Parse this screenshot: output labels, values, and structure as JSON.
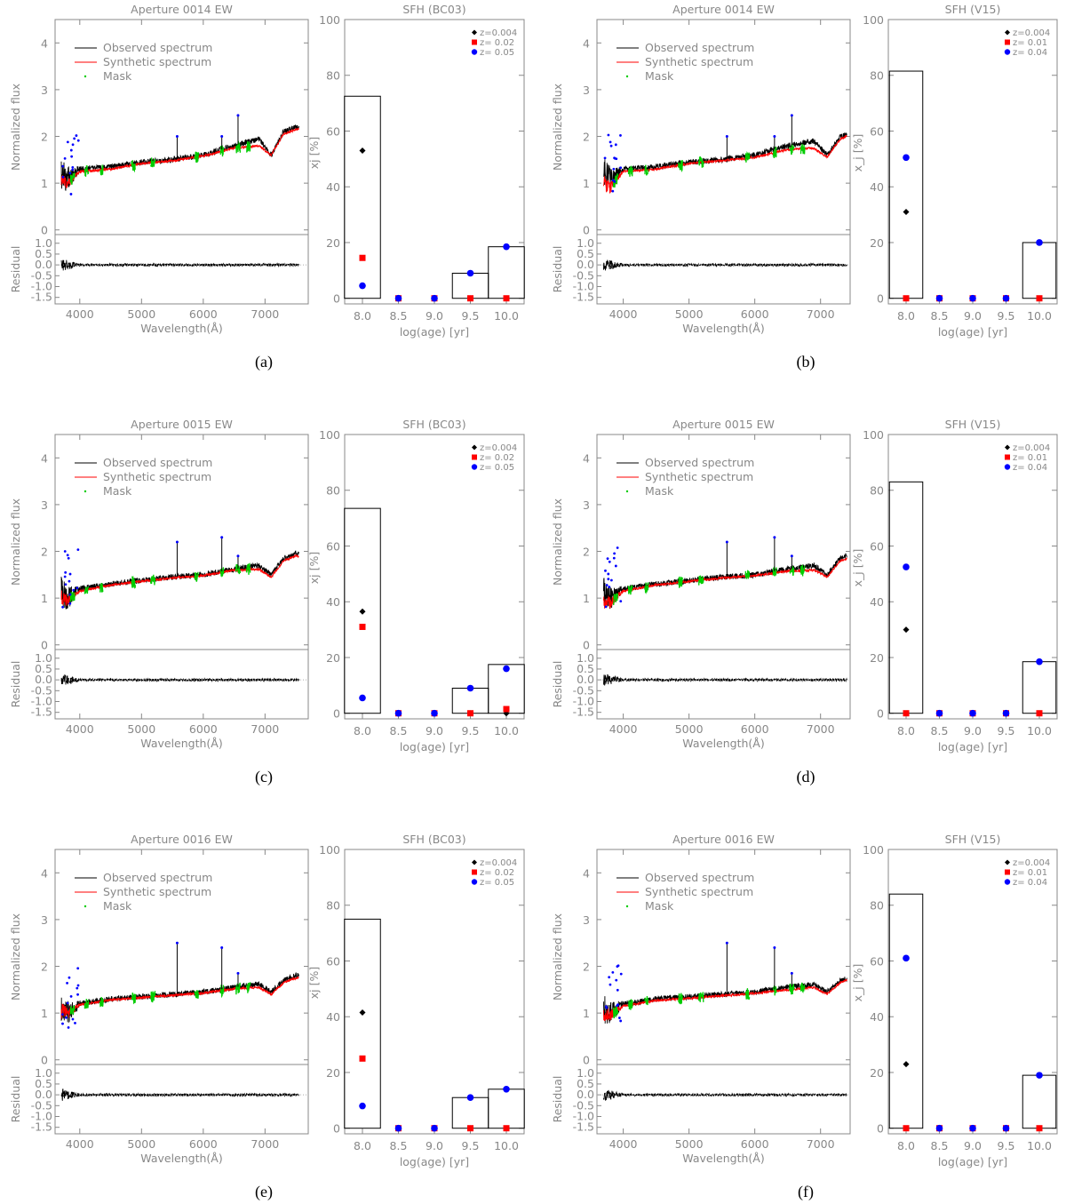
{
  "colors": {
    "axis": "#888888",
    "observed": "#000000",
    "synthetic": "#ff0000",
    "mask": "#00cc00",
    "flagged": "#0000ff",
    "z_low": "#000000",
    "z_mid": "#ff0000",
    "z_high": "#0000ff"
  },
  "labels": {
    "spec_ylabel": "Normalized flux",
    "resid_ylabel": "Residual",
    "spec_xlabel": "Wavelength(Å)",
    "sfh_xlabel": "log(age) [yr]",
    "legend_observed": "Observed spectrum",
    "legend_synthetic": "Synthetic spectrum",
    "legend_mask": "Mask"
  },
  "chart_data": [
    {
      "panel": "a",
      "type": "line",
      "title": "Aperture 0014 EW",
      "xlim": [
        3600,
        7700
      ],
      "ylim": [
        -0.1,
        4.5
      ],
      "resid_ylim": [
        -1.8,
        1.4
      ],
      "x_ticks": [
        4000,
        5000,
        6000,
        7000
      ],
      "y_ticks": [
        0,
        1,
        2,
        3,
        4
      ],
      "resid_ticks": [
        "1.0",
        "0.5",
        "0.0",
        "-0.5",
        "-1.0",
        "-1.5"
      ],
      "x_range": [
        3700,
        7550
      ],
      "observed": [
        [
          3700,
          1.2
        ],
        [
          3800,
          1.1
        ],
        [
          4000,
          1.3
        ],
        [
          4500,
          1.35
        ],
        [
          5000,
          1.45
        ],
        [
          5500,
          1.5
        ],
        [
          6000,
          1.6
        ],
        [
          6500,
          1.8
        ],
        [
          6900,
          1.95
        ],
        [
          7100,
          1.6
        ],
        [
          7300,
          2.1
        ],
        [
          7500,
          2.2
        ]
      ],
      "synthetic": [
        [
          3700,
          1.05
        ],
        [
          3800,
          1.0
        ],
        [
          4000,
          1.25
        ],
        [
          4500,
          1.3
        ],
        [
          5000,
          1.42
        ],
        [
          5500,
          1.48
        ],
        [
          6000,
          1.58
        ],
        [
          6500,
          1.75
        ],
        [
          6900,
          1.8
        ],
        [
          7100,
          1.6
        ],
        [
          7300,
          2.05
        ],
        [
          7500,
          2.15
        ]
      ],
      "spikes": [
        [
          5577,
          2.0
        ],
        [
          6300,
          2.0
        ],
        [
          6563,
          2.45
        ]
      ]
    },
    {
      "panel": "a",
      "type": "bar",
      "title": "SFH (BC03)",
      "ylabel": "xj [%]",
      "categories": [
        "8.0",
        "8.5",
        "9.0",
        "9.5",
        "10.0"
      ],
      "x": [
        8.0,
        8.5,
        9.0,
        9.5,
        10.0
      ],
      "values": [
        72.5,
        0,
        0,
        9,
        18.5
      ],
      "ylim": [
        0,
        100
      ],
      "y_ticks": [
        0,
        20,
        40,
        60,
        80,
        100
      ],
      "legend": [
        "z=0.004",
        "z= 0.02",
        "z= 0.05"
      ],
      "series": [
        {
          "name": "z=0.004",
          "values": [
            53,
            0,
            0,
            0,
            0
          ]
        },
        {
          "name": "z= 0.02",
          "values": [
            14.5,
            0,
            0,
            0,
            0
          ]
        },
        {
          "name": "z= 0.05",
          "values": [
            4.5,
            0,
            0,
            9,
            18.5
          ]
        }
      ]
    },
    {
      "panel": "b",
      "type": "line",
      "title": "Aperture 0014 EW",
      "xlim": [
        3600,
        7450
      ],
      "ylim": [
        -0.1,
        4.5
      ],
      "resid_ylim": [
        -1.8,
        1.4
      ],
      "x_ticks": [
        4000,
        5000,
        6000,
        7000
      ],
      "y_ticks": [
        0,
        1,
        2,
        3,
        4
      ],
      "resid_ticks": [
        "1.0",
        "0.5",
        "0.0",
        "-0.5",
        "-1.0",
        "-1.5"
      ],
      "x_range": [
        3700,
        7400
      ],
      "observed": [
        [
          3700,
          1.2
        ],
        [
          3800,
          1.1
        ],
        [
          4000,
          1.3
        ],
        [
          4500,
          1.35
        ],
        [
          5000,
          1.45
        ],
        [
          5500,
          1.5
        ],
        [
          6000,
          1.6
        ],
        [
          6500,
          1.8
        ],
        [
          6900,
          1.9
        ],
        [
          7100,
          1.6
        ],
        [
          7300,
          2.0
        ],
        [
          7400,
          2.05
        ]
      ],
      "synthetic": [
        [
          3700,
          1.0
        ],
        [
          3800,
          0.9
        ],
        [
          4000,
          1.25
        ],
        [
          4500,
          1.3
        ],
        [
          5000,
          1.42
        ],
        [
          5500,
          1.48
        ],
        [
          6000,
          1.55
        ],
        [
          6500,
          1.72
        ],
        [
          6900,
          1.75
        ],
        [
          7100,
          1.55
        ],
        [
          7300,
          1.95
        ],
        [
          7400,
          2.0
        ]
      ],
      "spikes": [
        [
          5577,
          2.0
        ],
        [
          6300,
          2.0
        ],
        [
          6563,
          2.45
        ]
      ]
    },
    {
      "panel": "b",
      "type": "bar",
      "title": "SFH (V15)",
      "ylabel": "x_j [%]",
      "categories": [
        "8.0",
        "8.5",
        "9.0",
        "9.5",
        "10.0"
      ],
      "x": [
        8.0,
        8.5,
        9.0,
        9.5,
        10.0
      ],
      "values": [
        81.5,
        0,
        0,
        0,
        20
      ],
      "ylim": [
        0,
        100
      ],
      "y_ticks": [
        0,
        20,
        40,
        60,
        80,
        100
      ],
      "legend": [
        "z=0.004",
        "z= 0.01",
        "z= 0.04"
      ],
      "series": [
        {
          "name": "z=0.004",
          "values": [
            31,
            0,
            0,
            0,
            0
          ]
        },
        {
          "name": "z= 0.01",
          "values": [
            0,
            0,
            0,
            0,
            0
          ]
        },
        {
          "name": "z= 0.04",
          "values": [
            50.5,
            0,
            0,
            0,
            20
          ]
        }
      ]
    },
    {
      "panel": "c",
      "type": "line",
      "title": "Aperture 0015 EW",
      "xlim": [
        3600,
        7700
      ],
      "ylim": [
        -0.1,
        4.5
      ],
      "resid_ylim": [
        -1.8,
        1.4
      ],
      "x_ticks": [
        4000,
        5000,
        6000,
        7000
      ],
      "y_ticks": [
        0,
        1,
        2,
        3,
        4
      ],
      "resid_ticks": [
        "1.0",
        "0.5",
        "0.0",
        "-0.5",
        "-1.0",
        "-1.5"
      ],
      "x_range": [
        3700,
        7550
      ],
      "observed": [
        [
          3700,
          1.1
        ],
        [
          3800,
          1.0
        ],
        [
          4000,
          1.2
        ],
        [
          4500,
          1.3
        ],
        [
          5000,
          1.38
        ],
        [
          5500,
          1.45
        ],
        [
          6000,
          1.5
        ],
        [
          6500,
          1.62
        ],
        [
          6900,
          1.7
        ],
        [
          7100,
          1.5
        ],
        [
          7300,
          1.85
        ],
        [
          7500,
          1.95
        ]
      ],
      "synthetic": [
        [
          3700,
          1.0
        ],
        [
          3800,
          0.95
        ],
        [
          4000,
          1.15
        ],
        [
          4500,
          1.28
        ],
        [
          5000,
          1.36
        ],
        [
          5500,
          1.43
        ],
        [
          6000,
          1.48
        ],
        [
          6500,
          1.6
        ],
        [
          6900,
          1.62
        ],
        [
          7100,
          1.45
        ],
        [
          7300,
          1.8
        ],
        [
          7500,
          1.9
        ]
      ],
      "spikes": [
        [
          5577,
          2.2
        ],
        [
          6300,
          2.3
        ],
        [
          6563,
          1.9
        ]
      ]
    },
    {
      "panel": "c",
      "type": "bar",
      "title": "SFH (BC03)",
      "ylabel": "xj [%]",
      "categories": [
        "8.0",
        "8.5",
        "9.0",
        "9.5",
        "10.0"
      ],
      "x": [
        8.0,
        8.5,
        9.0,
        9.5,
        10.0
      ],
      "values": [
        73.5,
        0,
        0,
        9,
        17.5
      ],
      "ylim": [
        0,
        100
      ],
      "y_ticks": [
        0,
        20,
        40,
        60,
        80,
        100
      ],
      "legend": [
        "z=0.004",
        "z= 0.02",
        "z= 0.05"
      ],
      "series": [
        {
          "name": "z=0.004",
          "values": [
            36.5,
            0,
            0,
            0,
            0
          ]
        },
        {
          "name": "z= 0.02",
          "values": [
            31,
            0,
            0,
            0,
            1.5
          ]
        },
        {
          "name": "z= 0.05",
          "values": [
            5.5,
            0,
            0,
            9,
            16
          ]
        }
      ]
    },
    {
      "panel": "d",
      "type": "line",
      "title": "Aperture 0015 EW",
      "xlim": [
        3600,
        7450
      ],
      "ylim": [
        -0.1,
        4.5
      ],
      "resid_ylim": [
        -1.8,
        1.4
      ],
      "x_ticks": [
        4000,
        5000,
        6000,
        7000
      ],
      "y_ticks": [
        0,
        1,
        2,
        3,
        4
      ],
      "resid_ticks": [
        "1.0",
        "0.5",
        "0.0",
        "-0.5",
        "-1.0",
        "-1.5"
      ],
      "x_range": [
        3700,
        7400
      ],
      "observed": [
        [
          3700,
          1.1
        ],
        [
          3800,
          1.0
        ],
        [
          4000,
          1.2
        ],
        [
          4500,
          1.3
        ],
        [
          5000,
          1.38
        ],
        [
          5500,
          1.45
        ],
        [
          6000,
          1.5
        ],
        [
          6500,
          1.62
        ],
        [
          6900,
          1.7
        ],
        [
          7100,
          1.5
        ],
        [
          7300,
          1.85
        ],
        [
          7400,
          1.9
        ]
      ],
      "synthetic": [
        [
          3700,
          0.95
        ],
        [
          3800,
          0.9
        ],
        [
          4000,
          1.15
        ],
        [
          4500,
          1.28
        ],
        [
          5000,
          1.36
        ],
        [
          5500,
          1.43
        ],
        [
          6000,
          1.48
        ],
        [
          6500,
          1.58
        ],
        [
          6900,
          1.6
        ],
        [
          7100,
          1.45
        ],
        [
          7300,
          1.8
        ],
        [
          7400,
          1.85
        ]
      ],
      "spikes": [
        [
          5577,
          2.2
        ],
        [
          6300,
          2.3
        ],
        [
          6563,
          1.9
        ]
      ]
    },
    {
      "panel": "d",
      "type": "bar",
      "title": "SFH (V15)",
      "ylabel": "x_j [%]",
      "categories": [
        "8.0",
        "8.5",
        "9.0",
        "9.5",
        "10.0"
      ],
      "x": [
        8.0,
        8.5,
        9.0,
        9.5,
        10.0
      ],
      "values": [
        83,
        0,
        0,
        0,
        18.5
      ],
      "ylim": [
        0,
        100
      ],
      "y_ticks": [
        0,
        20,
        40,
        60,
        80,
        100
      ],
      "legend": [
        "z=0.004",
        "z= 0.01",
        "z= 0.04"
      ],
      "series": [
        {
          "name": "z=0.004",
          "values": [
            30,
            0,
            0,
            0,
            0
          ]
        },
        {
          "name": "z= 0.01",
          "values": [
            0,
            0,
            0,
            0,
            0
          ]
        },
        {
          "name": "z= 0.04",
          "values": [
            52.5,
            0,
            0,
            0,
            18.5
          ]
        }
      ]
    },
    {
      "panel": "e",
      "type": "line",
      "title": "Aperture 0016 EW",
      "xlim": [
        3600,
        7700
      ],
      "ylim": [
        -0.1,
        4.5
      ],
      "resid_ylim": [
        -1.8,
        1.4
      ],
      "x_ticks": [
        4000,
        5000,
        6000,
        7000
      ],
      "y_ticks": [
        0,
        1,
        2,
        3,
        4
      ],
      "resid_ticks": [
        "1.0",
        "0.5",
        "0.0",
        "-0.5",
        "-1.0",
        "-1.5"
      ],
      "x_range": [
        3700,
        7550
      ],
      "observed": [
        [
          3700,
          1.1
        ],
        [
          3800,
          1.0
        ],
        [
          4000,
          1.2
        ],
        [
          4500,
          1.3
        ],
        [
          5000,
          1.35
        ],
        [
          5500,
          1.4
        ],
        [
          6000,
          1.45
        ],
        [
          6500,
          1.55
        ],
        [
          6900,
          1.62
        ],
        [
          7100,
          1.45
        ],
        [
          7300,
          1.7
        ],
        [
          7500,
          1.8
        ]
      ],
      "synthetic": [
        [
          3700,
          1.05
        ],
        [
          3800,
          1.0
        ],
        [
          4000,
          1.18
        ],
        [
          4500,
          1.28
        ],
        [
          5000,
          1.33
        ],
        [
          5500,
          1.38
        ],
        [
          6000,
          1.43
        ],
        [
          6500,
          1.52
        ],
        [
          6900,
          1.55
        ],
        [
          7100,
          1.4
        ],
        [
          7300,
          1.65
        ],
        [
          7500,
          1.75
        ]
      ],
      "spikes": [
        [
          5577,
          2.5
        ],
        [
          6300,
          2.4
        ],
        [
          6563,
          1.85
        ]
      ]
    },
    {
      "panel": "e",
      "type": "bar",
      "title": "SFH (BC03)",
      "ylabel": "xj [%]",
      "categories": [
        "8.0",
        "8.5",
        "9.0",
        "9.5",
        "10.0"
      ],
      "x": [
        8.0,
        8.5,
        9.0,
        9.5,
        10.0
      ],
      "values": [
        75,
        0,
        0,
        11,
        14
      ],
      "ylim": [
        0,
        100
      ],
      "y_ticks": [
        0,
        20,
        40,
        60,
        80,
        100
      ],
      "legend": [
        "z=0.004",
        "z= 0.02",
        "z= 0.05"
      ],
      "series": [
        {
          "name": "z=0.004",
          "values": [
            41.5,
            0,
            0,
            0,
            0
          ]
        },
        {
          "name": "z= 0.02",
          "values": [
            25,
            0,
            0,
            0,
            0
          ]
        },
        {
          "name": "z= 0.05",
          "values": [
            8,
            0,
            0,
            11,
            14
          ]
        }
      ]
    },
    {
      "panel": "f",
      "type": "line",
      "title": "Aperture 0016 EW",
      "xlim": [
        3600,
        7450
      ],
      "ylim": [
        -0.1,
        4.5
      ],
      "resid_ylim": [
        -1.8,
        1.4
      ],
      "x_ticks": [
        4000,
        5000,
        6000,
        7000
      ],
      "y_ticks": [
        0,
        1,
        2,
        3,
        4
      ],
      "resid_ticks": [
        "1.0",
        "0.5",
        "0.0",
        "-0.5",
        "-1.0",
        "-1.5"
      ],
      "x_range": [
        3700,
        7400
      ],
      "observed": [
        [
          3700,
          1.1
        ],
        [
          3800,
          1.0
        ],
        [
          4000,
          1.2
        ],
        [
          4500,
          1.3
        ],
        [
          5000,
          1.35
        ],
        [
          5500,
          1.4
        ],
        [
          6000,
          1.45
        ],
        [
          6500,
          1.55
        ],
        [
          6900,
          1.62
        ],
        [
          7100,
          1.45
        ],
        [
          7300,
          1.7
        ],
        [
          7400,
          1.75
        ]
      ],
      "synthetic": [
        [
          3700,
          1.0
        ],
        [
          3800,
          0.95
        ],
        [
          4000,
          1.15
        ],
        [
          4500,
          1.27
        ],
        [
          5000,
          1.32
        ],
        [
          5500,
          1.37
        ],
        [
          6000,
          1.42
        ],
        [
          6500,
          1.5
        ],
        [
          6900,
          1.55
        ],
        [
          7100,
          1.4
        ],
        [
          7300,
          1.65
        ],
        [
          7400,
          1.7
        ]
      ],
      "spikes": [
        [
          5577,
          2.5
        ],
        [
          6300,
          2.4
        ],
        [
          6563,
          1.85
        ]
      ]
    },
    {
      "panel": "f",
      "type": "bar",
      "title": "SFH (V15)",
      "ylabel": "x_j [%]",
      "categories": [
        "8.0",
        "8.5",
        "9.0",
        "9.5",
        "10.0"
      ],
      "x": [
        8.0,
        8.5,
        9.0,
        9.5,
        10.0
      ],
      "values": [
        84,
        0,
        0,
        0,
        19
      ],
      "ylim": [
        0,
        100
      ],
      "y_ticks": [
        0,
        20,
        40,
        60,
        80,
        100
      ],
      "legend": [
        "z=0.004",
        "z= 0.01",
        "z= 0.04"
      ],
      "series": [
        {
          "name": "z=0.004",
          "values": [
            23,
            0,
            0,
            0,
            0
          ]
        },
        {
          "name": "z= 0.01",
          "values": [
            0,
            0,
            0,
            0,
            0
          ]
        },
        {
          "name": "z= 0.04",
          "values": [
            61,
            0,
            0,
            0,
            19
          ]
        }
      ]
    }
  ],
  "panel_labels": [
    "(a)",
    "(b)",
    "(c)",
    "(d)",
    "(e)",
    "(f)"
  ]
}
